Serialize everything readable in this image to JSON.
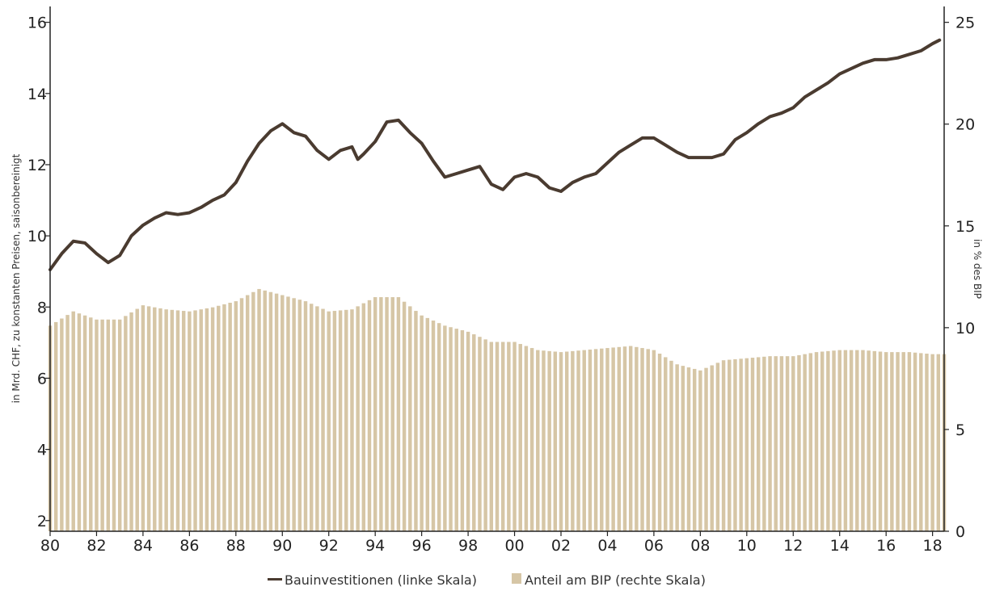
{
  "colors": {
    "line": "#4a3b30",
    "bars": "#d6c6a6",
    "axis": "#222222"
  },
  "axes": {
    "left_label": "in Mrd. CHF, zu konstanten Preisen, saisonbereinigt",
    "right_label": "in % des BIP"
  },
  "legend": {
    "line_label": "Bauinvestitionen (linke Skala)",
    "bar_label": "Anteil am BIP (rechte Skala)"
  },
  "chart_data": {
    "type": "line+bar",
    "x_range": [
      1980,
      2018.5
    ],
    "x_ticks": [
      {
        "x": 1980,
        "label": "80"
      },
      {
        "x": 1982,
        "label": "82"
      },
      {
        "x": 1984,
        "label": "84"
      },
      {
        "x": 1986,
        "label": "86"
      },
      {
        "x": 1988,
        "label": "88"
      },
      {
        "x": 1990,
        "label": "90"
      },
      {
        "x": 1992,
        "label": "92"
      },
      {
        "x": 1994,
        "label": "94"
      },
      {
        "x": 1996,
        "label": "96"
      },
      {
        "x": 1998,
        "label": "98"
      },
      {
        "x": 2000,
        "label": "00"
      },
      {
        "x": 2002,
        "label": "02"
      },
      {
        "x": 2004,
        "label": "04"
      },
      {
        "x": 2006,
        "label": "06"
      },
      {
        "x": 2008,
        "label": "08"
      },
      {
        "x": 2010,
        "label": "10"
      },
      {
        "x": 2012,
        "label": "12"
      },
      {
        "x": 2014,
        "label": "14"
      },
      {
        "x": 2016,
        "label": "16"
      },
      {
        "x": 2018,
        "label": "18"
      }
    ],
    "y_left": {
      "range": [
        1.7,
        16.4
      ],
      "ticks": [
        "2",
        "4",
        "6",
        "8",
        "10",
        "12",
        "14",
        "16"
      ]
    },
    "y_right": {
      "range": [
        0,
        25.7
      ],
      "ticks": [
        "0",
        "5",
        "10",
        "15",
        "20",
        "25"
      ]
    },
    "grid": false,
    "legend_position": "bottom-center",
    "series": [
      {
        "type": "line",
        "axis": "left",
        "points": [
          [
            1980.0,
            9.05
          ],
          [
            1980.5,
            9.5
          ],
          [
            1981.0,
            9.85
          ],
          [
            1981.5,
            9.8
          ],
          [
            1982.0,
            9.5
          ],
          [
            1982.5,
            9.25
          ],
          [
            1983.0,
            9.45
          ],
          [
            1983.5,
            10.0
          ],
          [
            1984.0,
            10.3
          ],
          [
            1984.5,
            10.5
          ],
          [
            1985.0,
            10.65
          ],
          [
            1985.5,
            10.6
          ],
          [
            1986.0,
            10.65
          ],
          [
            1986.5,
            10.8
          ],
          [
            1987.0,
            11.0
          ],
          [
            1987.5,
            11.15
          ],
          [
            1988.0,
            11.5
          ],
          [
            1988.5,
            12.1
          ],
          [
            1989.0,
            12.6
          ],
          [
            1989.5,
            12.95
          ],
          [
            1990.0,
            13.15
          ],
          [
            1990.5,
            12.9
          ],
          [
            1991.0,
            12.8
          ],
          [
            1991.5,
            12.4
          ],
          [
            1992.0,
            12.15
          ],
          [
            1992.5,
            12.4
          ],
          [
            1993.0,
            12.5
          ],
          [
            1993.25,
            12.15
          ],
          [
            1993.5,
            12.3
          ],
          [
            1994.0,
            12.65
          ],
          [
            1994.5,
            13.2
          ],
          [
            1995.0,
            13.25
          ],
          [
            1995.5,
            12.9
          ],
          [
            1996.0,
            12.6
          ],
          [
            1996.5,
            12.1
          ],
          [
            1997.0,
            11.65
          ],
          [
            1997.5,
            11.75
          ],
          [
            1998.0,
            11.85
          ],
          [
            1998.5,
            11.95
          ],
          [
            1999.0,
            11.45
          ],
          [
            1999.5,
            11.3
          ],
          [
            2000.0,
            11.65
          ],
          [
            2000.5,
            11.75
          ],
          [
            2001.0,
            11.65
          ],
          [
            2001.5,
            11.35
          ],
          [
            2002.0,
            11.25
          ],
          [
            2002.5,
            11.5
          ],
          [
            2003.0,
            11.65
          ],
          [
            2003.5,
            11.75
          ],
          [
            2004.0,
            12.05
          ],
          [
            2004.5,
            12.35
          ],
          [
            2005.0,
            12.55
          ],
          [
            2005.5,
            12.75
          ],
          [
            2006.0,
            12.75
          ],
          [
            2006.5,
            12.55
          ],
          [
            2007.0,
            12.35
          ],
          [
            2007.5,
            12.2
          ],
          [
            2008.0,
            12.2
          ],
          [
            2008.5,
            12.2
          ],
          [
            2009.0,
            12.3
          ],
          [
            2009.5,
            12.7
          ],
          [
            2010.0,
            12.9
          ],
          [
            2010.5,
            13.15
          ],
          [
            2011.0,
            13.35
          ],
          [
            2011.5,
            13.45
          ],
          [
            2012.0,
            13.6
          ],
          [
            2012.5,
            13.9
          ],
          [
            2013.0,
            14.1
          ],
          [
            2013.5,
            14.3
          ],
          [
            2014.0,
            14.55
          ],
          [
            2014.5,
            14.7
          ],
          [
            2015.0,
            14.85
          ],
          [
            2015.5,
            14.95
          ],
          [
            2016.0,
            14.95
          ],
          [
            2016.5,
            15.0
          ],
          [
            2017.0,
            15.1
          ],
          [
            2017.5,
            15.2
          ],
          [
            2018.0,
            15.4
          ],
          [
            2018.3,
            15.5
          ]
        ]
      },
      {
        "type": "bar",
        "axis": "right",
        "points": [
          [
            1980,
            10.1
          ],
          [
            1981,
            10.8
          ],
          [
            1982,
            10.4
          ],
          [
            1983,
            10.4
          ],
          [
            1984,
            11.1
          ],
          [
            1985,
            10.9
          ],
          [
            1986,
            10.8
          ],
          [
            1987,
            11.0
          ],
          [
            1988,
            11.3
          ],
          [
            1989,
            11.9
          ],
          [
            1990,
            11.6
          ],
          [
            1991,
            11.3
          ],
          [
            1992,
            10.8
          ],
          [
            1993,
            10.9
          ],
          [
            1994,
            11.5
          ],
          [
            1995,
            11.5
          ],
          [
            1996,
            10.6
          ],
          [
            1997,
            10.1
          ],
          [
            1998,
            9.8
          ],
          [
            1999,
            9.3
          ],
          [
            2000,
            9.3
          ],
          [
            2001,
            8.9
          ],
          [
            2002,
            8.8
          ],
          [
            2003,
            8.9
          ],
          [
            2004,
            9.0
          ],
          [
            2005,
            9.1
          ],
          [
            2006,
            8.9
          ],
          [
            2007,
            8.2
          ],
          [
            2008,
            7.9
          ],
          [
            2009,
            8.4
          ],
          [
            2010,
            8.5
          ],
          [
            2011,
            8.6
          ],
          [
            2012,
            8.6
          ],
          [
            2013,
            8.8
          ],
          [
            2014,
            8.9
          ],
          [
            2015,
            8.9
          ],
          [
            2016,
            8.8
          ],
          [
            2017,
            8.8
          ],
          [
            2018,
            8.7
          ],
          [
            2018.5,
            8.7
          ]
        ]
      }
    ]
  }
}
